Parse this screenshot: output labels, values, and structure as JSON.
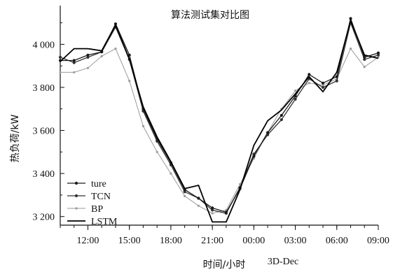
{
  "chart_data": {
    "type": "line",
    "title": "算法测试集对比图",
    "xlabel": "时间/小时",
    "xlabel_extra": "3D-Dec",
    "ylabel": "热负荷/kW",
    "xticks": [
      "12:00",
      "15:00",
      "18:00",
      "21:00",
      "00:00",
      "03:00",
      "06:00",
      "09:00"
    ],
    "yticks": [
      "3 200",
      "3 400",
      "3 600",
      "3 800",
      "4 000"
    ],
    "ylim": [
      3160,
      4180
    ],
    "grid": false,
    "legend_position": "bottom-left",
    "x_hours": [
      10,
      11,
      12,
      13,
      14,
      15,
      16,
      17,
      18,
      19,
      20,
      21,
      22,
      23,
      24,
      25,
      26,
      27,
      28,
      29,
      30,
      31,
      32,
      33
    ],
    "series": [
      {
        "name": "ture",
        "color": "#1a1a1a",
        "marker": "dot",
        "values": [
          3925,
          3925,
          3950,
          3965,
          4095,
          3950,
          3700,
          3560,
          3450,
          3325,
          3285,
          3240,
          3220,
          3330,
          3480,
          3590,
          3670,
          3760,
          3860,
          3820,
          3850,
          4120,
          3940,
          3960
        ]
      },
      {
        "name": "TCN",
        "color": "#333333",
        "marker": "dot",
        "values": [
          3940,
          3915,
          3940,
          3965,
          4080,
          3930,
          3690,
          3550,
          3440,
          3315,
          3285,
          3230,
          3215,
          3335,
          3490,
          3580,
          3650,
          3745,
          3840,
          3800,
          3830,
          4100,
          3930,
          3950
        ]
      },
      {
        "name": "BP",
        "color": "#9a9a9a",
        "marker": "dot",
        "values": [
          3870,
          3870,
          3890,
          3945,
          3980,
          3830,
          3620,
          3500,
          3400,
          3295,
          3250,
          3215,
          3230,
          3350,
          3470,
          3590,
          3700,
          3785,
          3820,
          3810,
          3840,
          3980,
          3895,
          3940
        ]
      },
      {
        "name": "LSTM",
        "color": "#000000",
        "marker": "none",
        "values": [
          3920,
          3980,
          3980,
          3970,
          4090,
          3930,
          3710,
          3570,
          3455,
          3330,
          3345,
          3175,
          3175,
          3325,
          3530,
          3645,
          3695,
          3770,
          3850,
          3780,
          3870,
          4110,
          3950,
          3935
        ]
      }
    ]
  }
}
